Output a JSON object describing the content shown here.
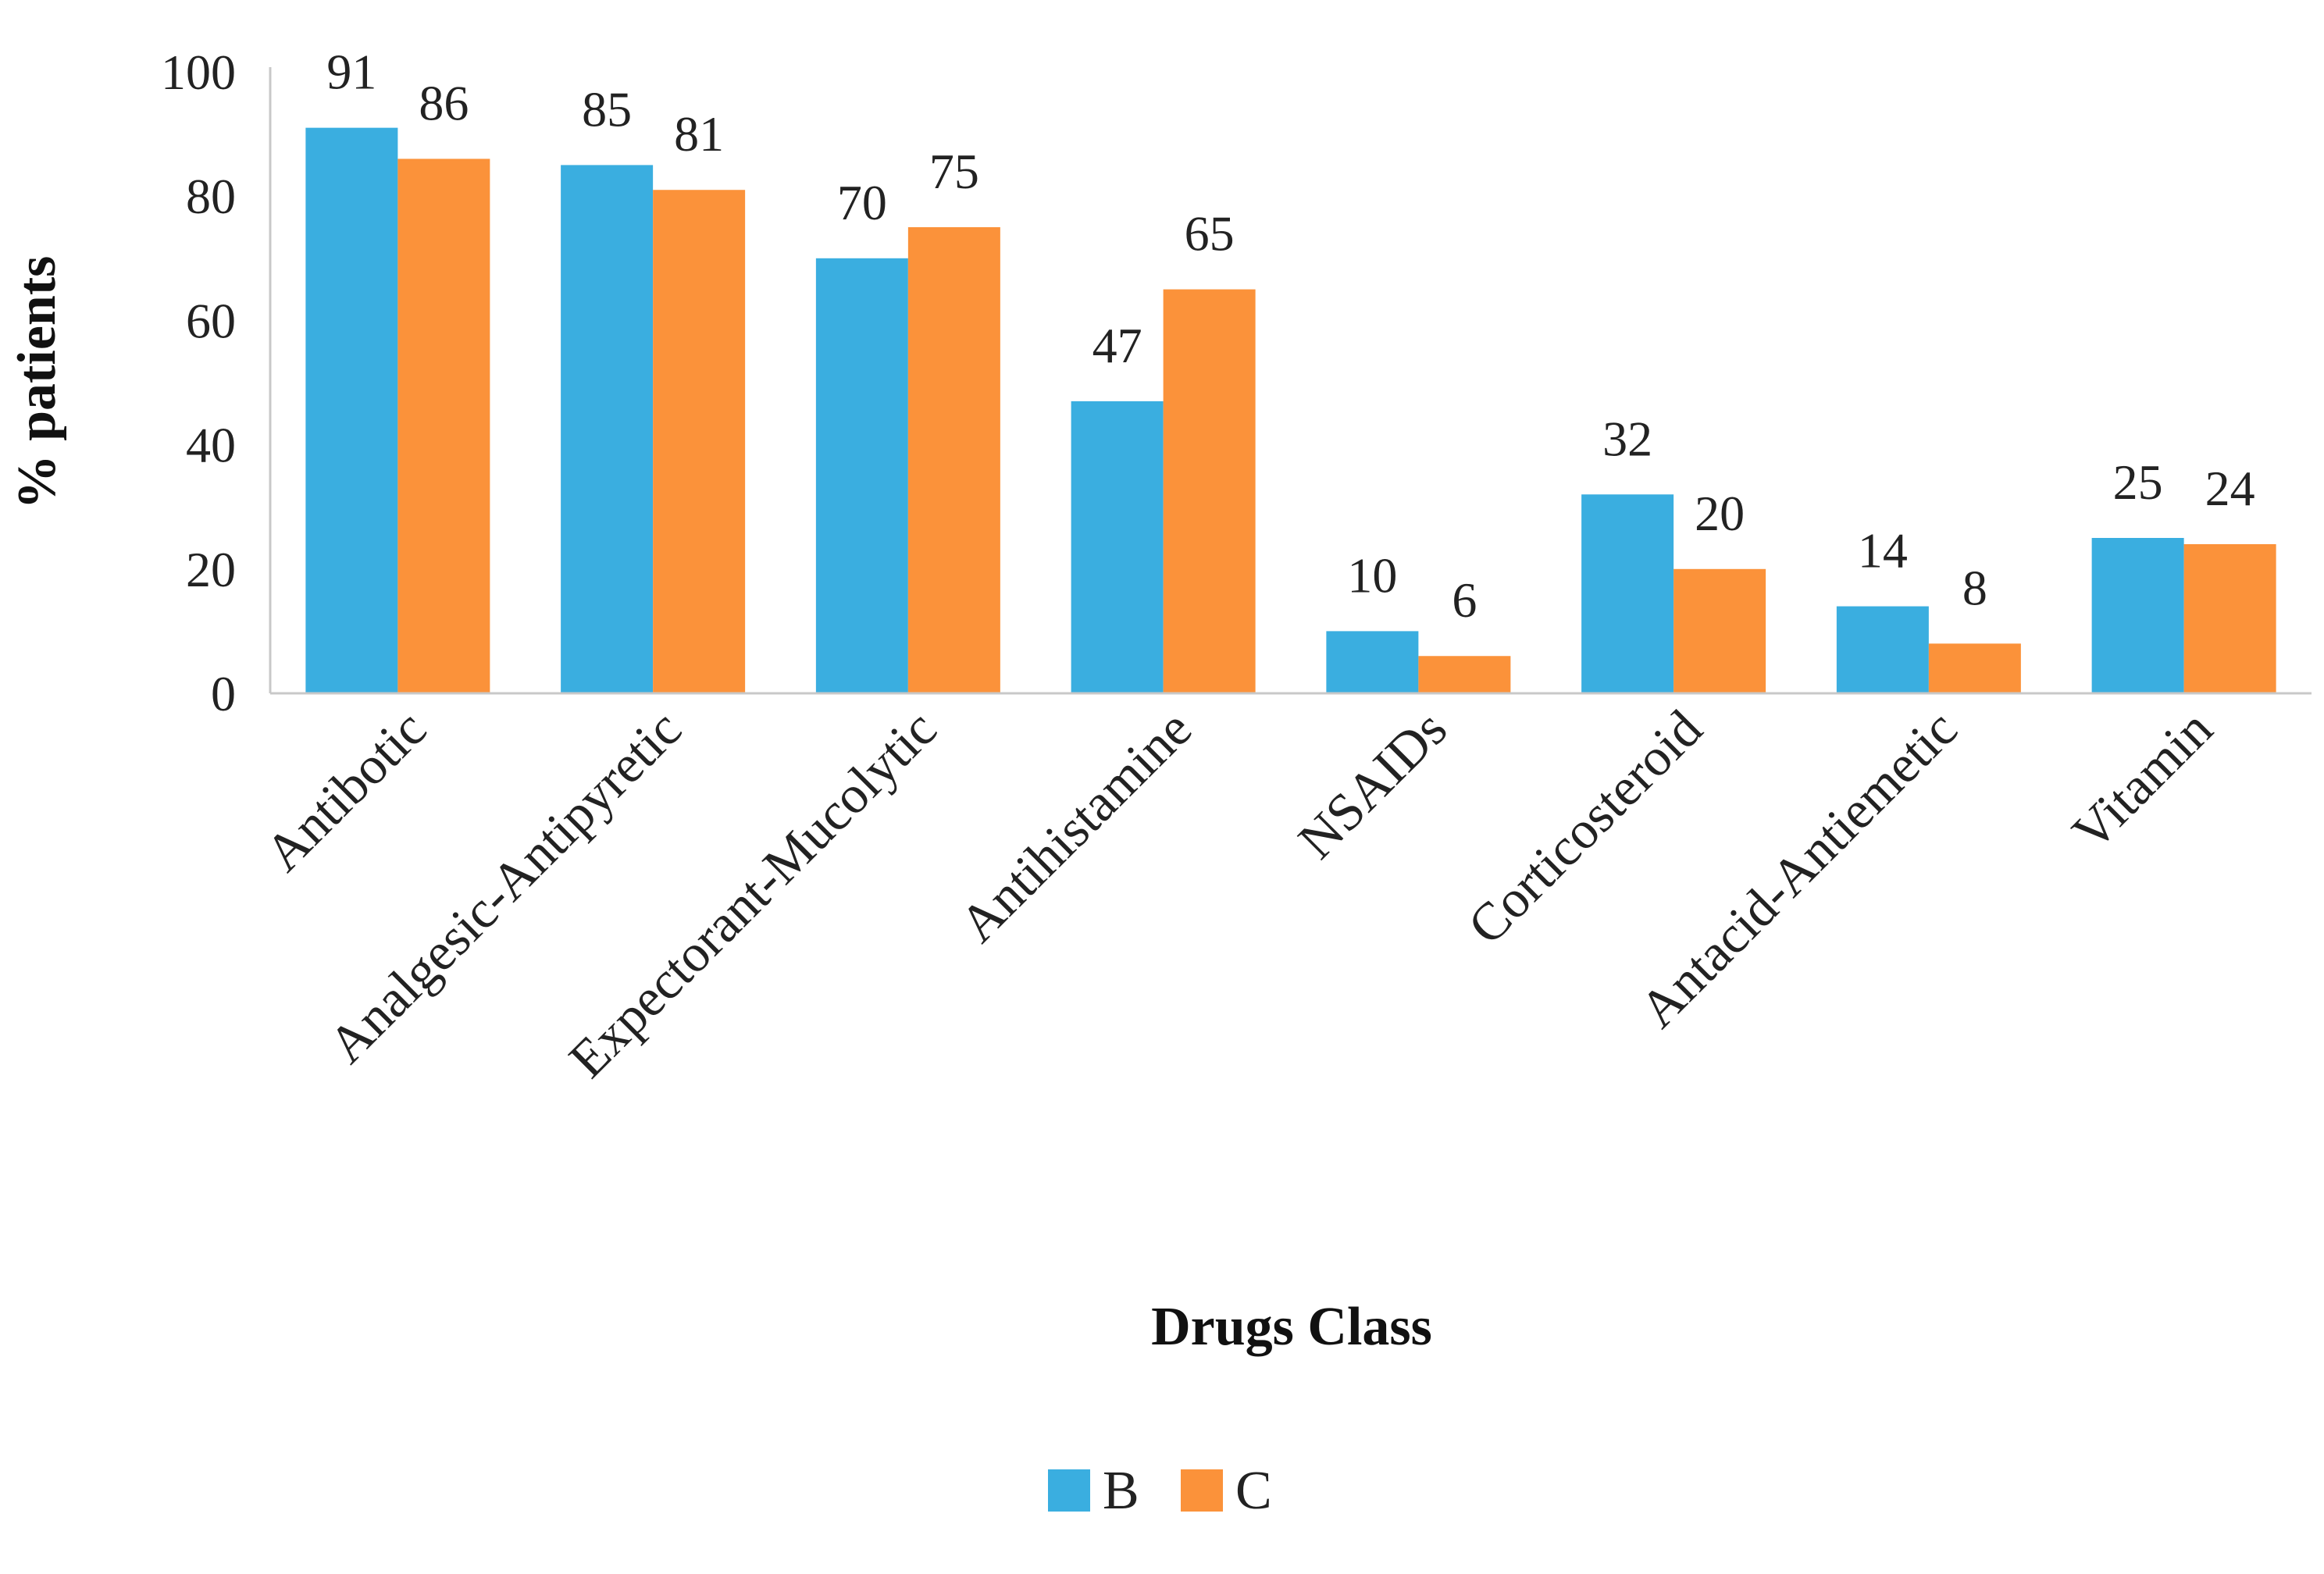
{
  "chart_data": {
    "type": "bar",
    "categories": [
      "Antibotic",
      "Analgesic-Antipyretic",
      "Expectorant-Mucolytic",
      "Antihistamine",
      "NSAIDs",
      "Corticosteroid",
      "Antacid-Antiemetic",
      "Vitamin"
    ],
    "series": [
      {
        "name": "B",
        "color": "#3aaee0",
        "values": [
          91,
          85,
          70,
          47,
          10,
          32,
          14,
          25
        ]
      },
      {
        "name": "C",
        "color": "#fb923a",
        "values": [
          86,
          81,
          75,
          65,
          6,
          20,
          8,
          24
        ]
      }
    ],
    "xlabel": "Drugs Class",
    "ylabel": "% patients",
    "ylim": [
      0,
      100
    ],
    "yticks": [
      0,
      20,
      40,
      60,
      80,
      100
    ],
    "grid": false,
    "legend_position": "bottom-center"
  }
}
